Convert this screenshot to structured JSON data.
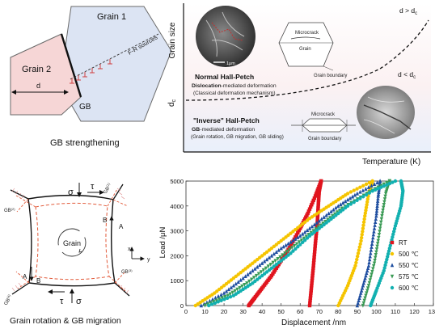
{
  "panel_a": {
    "grain1": "Grain 1",
    "grain2": "Grain 2",
    "fr_sources": "F-R sources",
    "d": "d",
    "gb": "GB",
    "caption": "GB strengthening"
  },
  "panel_b": {
    "y_axis": "Grain size",
    "x_axis": "Temperature (K)",
    "dc_label": "d",
    "dc_sub": "c",
    "region_upper": "d > d",
    "region_upper_sub": "c",
    "region_lower": "d < d",
    "region_lower_sub": "c",
    "scale_bar": "1μm",
    "normal_title": "Normal Hall-Petch",
    "normal_line1_bold": "Dislocation",
    "normal_line1_rest": "-mediated deformation",
    "normal_line2": "(Classical deformation mechanism)",
    "inverse_title": "\"Inverse\" Hall-Petch",
    "inverse_line1_bold": "GB",
    "inverse_line1_rest": "-mediated deformation",
    "inverse_line2": "(Grain rotation, GB  migration, GB sliding)",
    "microcrack_top": "Microcrack",
    "grain_top": "Grain",
    "gb_top": "Grain boundary",
    "microcrack_bottom": "Microcrack",
    "gb_bottom": "Grain boundary"
  },
  "panel_c": {
    "sigma": "σ",
    "tau": "τ",
    "grain": "Grain",
    "A": "A",
    "B": "B",
    "gb1": "GB",
    "gb1_sup": "(1)",
    "gb2": "GB",
    "gb2_sup": "(2)",
    "gb3": "GB",
    "gb3_sup": "(3)",
    "gb4": "GB",
    "gb4_sup": "(4)",
    "axis_x": "x",
    "axis_y": "y",
    "caption": "Grain rotation & GB migration"
  },
  "chart_data": {
    "type": "scatter",
    "xlabel": "Displacement /nm",
    "ylabel": "Load /μN",
    "xlim": [
      0,
      130
    ],
    "ylim": [
      0,
      5000
    ],
    "xticks": [
      0,
      10,
      20,
      30,
      40,
      50,
      60,
      70,
      80,
      90,
      100,
      110,
      120,
      130
    ],
    "yticks": [
      0,
      1000,
      2000,
      3000,
      4000,
      5000
    ],
    "legend_position": "right",
    "series": [
      {
        "name": "RT",
        "color": "#e0141e",
        "marker": "square",
        "loading": [
          [
            33,
            0
          ],
          [
            36,
            300
          ],
          [
            40,
            700
          ],
          [
            45,
            1200
          ],
          [
            50,
            1800
          ],
          [
            55,
            2400
          ],
          [
            60,
            3100
          ],
          [
            64,
            3700
          ],
          [
            68,
            4400
          ],
          [
            71,
            5000
          ]
        ],
        "unloading": [
          [
            71,
            5000
          ],
          [
            70,
            4600
          ],
          [
            69.5,
            4000
          ],
          [
            69,
            3300
          ],
          [
            68,
            2500
          ],
          [
            67,
            1600
          ],
          [
            66,
            800
          ],
          [
            65,
            0
          ]
        ]
      },
      {
        "name": "500 ℃",
        "color": "#f5c400",
        "marker": "circle",
        "loading": [
          [
            5,
            0
          ],
          [
            15,
            500
          ],
          [
            25,
            1100
          ],
          [
            35,
            1700
          ],
          [
            45,
            2300
          ],
          [
            55,
            2900
          ],
          [
            65,
            3500
          ],
          [
            75,
            4000
          ],
          [
            85,
            4500
          ],
          [
            98,
            5000
          ]
        ],
        "unloading": [
          [
            98,
            5000
          ],
          [
            96,
            4500
          ],
          [
            94,
            3600
          ],
          [
            92,
            2600
          ],
          [
            89,
            1600
          ],
          [
            85,
            800
          ],
          [
            80,
            0
          ]
        ]
      },
      {
        "name": "550 ℃",
        "color": "#1f4ea0",
        "marker": "triangle",
        "loading": [
          [
            8,
            0
          ],
          [
            20,
            500
          ],
          [
            30,
            1100
          ],
          [
            40,
            1700
          ],
          [
            50,
            2300
          ],
          [
            60,
            2800
          ],
          [
            70,
            3400
          ],
          [
            80,
            4000
          ],
          [
            90,
            4500
          ],
          [
            102,
            5000
          ]
        ],
        "unloading": [
          [
            102,
            5000
          ],
          [
            101,
            4400
          ],
          [
            100,
            3600
          ],
          [
            98,
            2600
          ],
          [
            96,
            1600
          ],
          [
            93,
            800
          ],
          [
            90,
            0
          ]
        ]
      },
      {
        "name": "575 ℃",
        "color": "#3a9a55",
        "marker": "triangle-down",
        "loading": [
          [
            10,
            0
          ],
          [
            22,
            400
          ],
          [
            32,
            900
          ],
          [
            42,
            1500
          ],
          [
            52,
            2100
          ],
          [
            62,
            2700
          ],
          [
            72,
            3300
          ],
          [
            82,
            3900
          ],
          [
            95,
            4500
          ],
          [
            107,
            5000
          ]
        ],
        "unloading": [
          [
            107,
            5000
          ],
          [
            105,
            4500
          ],
          [
            103,
            3600
          ],
          [
            101,
            2600
          ],
          [
            99,
            1700
          ],
          [
            96,
            800
          ],
          [
            93,
            0
          ]
        ]
      },
      {
        "name": "600 ℃",
        "color": "#12b0b0",
        "marker": "circle",
        "loading": [
          [
            12,
            0
          ],
          [
            25,
            400
          ],
          [
            35,
            900
          ],
          [
            45,
            1500
          ],
          [
            55,
            2100
          ],
          [
            65,
            2800
          ],
          [
            75,
            3400
          ],
          [
            85,
            4000
          ],
          [
            98,
            4600
          ],
          [
            110,
            5000
          ]
        ],
        "unloading": [
          [
            113,
            5000
          ],
          [
            114,
            4600
          ],
          [
            113,
            4000
          ],
          [
            110,
            3200
          ],
          [
            107,
            2300
          ],
          [
            104,
            1400
          ],
          [
            100,
            600
          ],
          [
            97,
            0
          ]
        ]
      }
    ]
  }
}
